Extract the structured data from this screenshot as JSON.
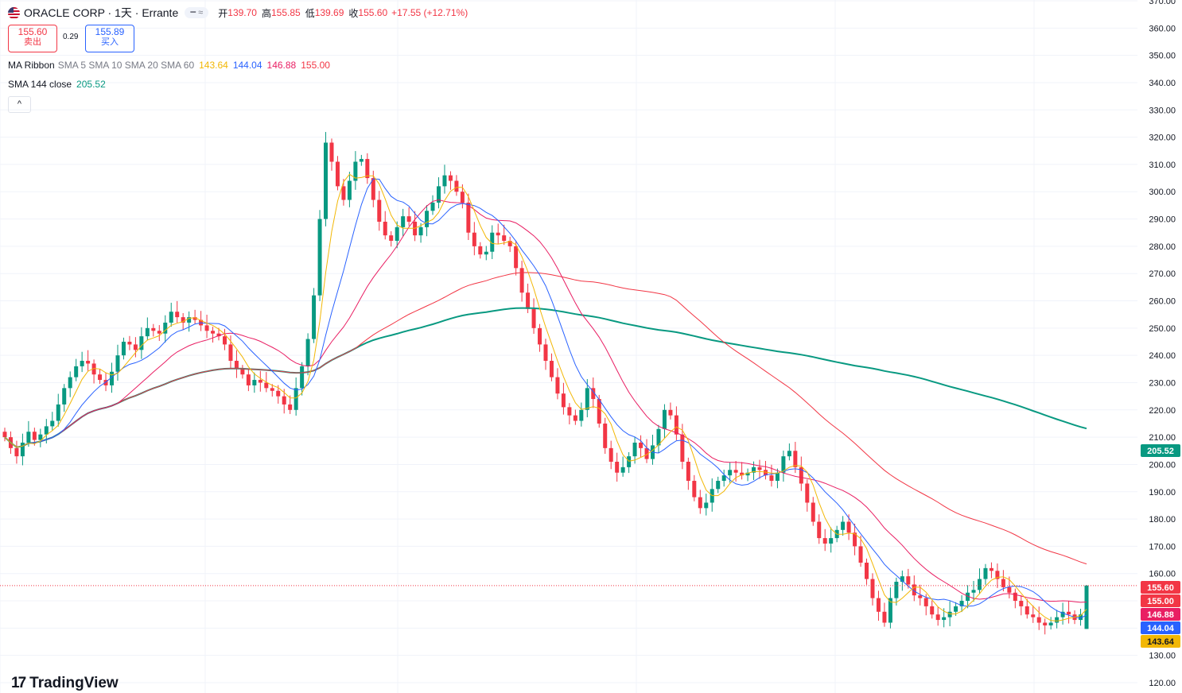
{
  "header": {
    "symbol_title": "ORACLE CORP · 1天 · Errante",
    "open_label": "开",
    "open": "139.70",
    "high_label": "高",
    "high": "155.85",
    "low_label": "低",
    "low": "139.69",
    "close_label": "收",
    "close": "155.60",
    "change": "+17.55 (+12.71%)",
    "pill_icons": "━ ≈"
  },
  "trade": {
    "sell_price": "155.60",
    "sell_label": "卖出",
    "spread": "0.29",
    "buy_price": "155.89",
    "buy_label": "买入"
  },
  "indicators": {
    "ribbon_name": "MA Ribbon",
    "ribbon_params": "SMA 5 SMA 10 SMA 20 SMA 60",
    "ribbon_values": [
      "143.64",
      "144.04",
      "146.88",
      "155.00"
    ],
    "sma144_name": "SMA 144 close",
    "sma144_value": "205.52",
    "collapse_glyph": "^"
  },
  "branding": {
    "logo_mark": "17",
    "name": "TradingView"
  },
  "colors": {
    "up": "#089981",
    "down": "#f23645",
    "sma5": "#f2b705",
    "sma10": "#2962ff",
    "sma20": "#e91e63",
    "sma60": "#f23645",
    "sma144": "#089981",
    "grid": "#f0f3fa",
    "axis_text": "#131722"
  },
  "chart_data": {
    "type": "candlestick",
    "y_axis_ticks": [
      "120.00",
      "130.00",
      "140.00",
      "150.00",
      "160.00",
      "170.00",
      "180.00",
      "190.00",
      "200.00",
      "210.00",
      "220.00",
      "230.00",
      "240.00",
      "250.00",
      "260.00",
      "270.00",
      "280.00",
      "290.00",
      "300.00",
      "310.00",
      "320.00",
      "330.00",
      "340.00",
      "350.00",
      "360.00",
      "370.00"
    ],
    "ylim": [
      120,
      370
    ],
    "price_labels": [
      {
        "value": "155.60",
        "color": "#f23645"
      },
      {
        "value": "155.00",
        "color": "#f23645"
      },
      {
        "value": "146.88",
        "color": "#e91e63"
      },
      {
        "value": "144.04",
        "color": "#2962ff"
      },
      {
        "value": "143.64",
        "color": "#f2b705"
      },
      {
        "value": "205.52",
        "color": "#089981"
      }
    ],
    "last_price": 155.6,
    "series": {
      "close": [
        210,
        206,
        203,
        208,
        212,
        209,
        211,
        214,
        216,
        222,
        228,
        232,
        236,
        238,
        237,
        233,
        231,
        229,
        234,
        240,
        245,
        244,
        242,
        247,
        250,
        249,
        248,
        252,
        256,
        254,
        252,
        254,
        253,
        251,
        249,
        248,
        247,
        244,
        238,
        235,
        233,
        229,
        231,
        230,
        228,
        227,
        225,
        222,
        220,
        228,
        236,
        246,
        262,
        290,
        318,
        311,
        302,
        297,
        304,
        311,
        312,
        305,
        297,
        289,
        284,
        282,
        287,
        291,
        289,
        284,
        287,
        293,
        296,
        302,
        306,
        304,
        300,
        296,
        285,
        280,
        277,
        278,
        285,
        284,
        282,
        280,
        272,
        263,
        257,
        250,
        244,
        238,
        232,
        226,
        221,
        218,
        216,
        220,
        228,
        224,
        215,
        206,
        201,
        197,
        199,
        203,
        208,
        206,
        202,
        207,
        213,
        220,
        218,
        211,
        201,
        194,
        188,
        184,
        186,
        191,
        194,
        196,
        198,
        197,
        196,
        197,
        199,
        198,
        196,
        194,
        197,
        203,
        205,
        199,
        193,
        186,
        179,
        173,
        171,
        173,
        176,
        179,
        175,
        170,
        164,
        158,
        151,
        146,
        142,
        151,
        157,
        159,
        156,
        152,
        151,
        148,
        145,
        143,
        144,
        146,
        148,
        150,
        153,
        154,
        158,
        162,
        161,
        158,
        155,
        153,
        150,
        148,
        145,
        144,
        142,
        141,
        142,
        144,
        146,
        145,
        143,
        145,
        155.6
      ]
    }
  }
}
